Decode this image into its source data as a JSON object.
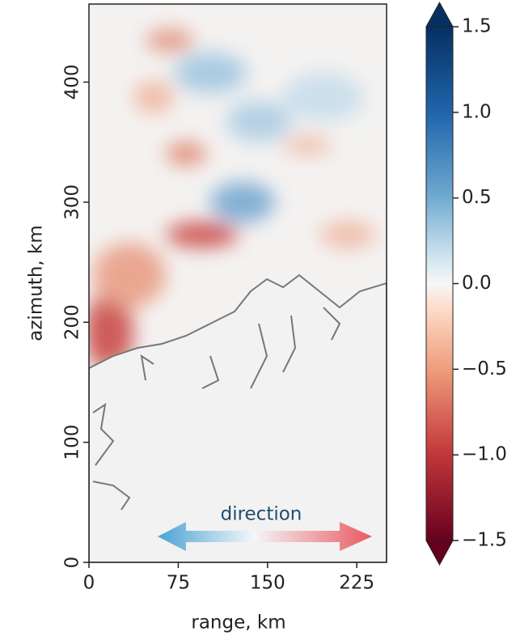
{
  "chart_data": {
    "type": "heatmap",
    "x_label": "range, km",
    "y_label": "azimuth, km",
    "xlim": [
      0,
      250
    ],
    "xticks": [
      0,
      75,
      150,
      225
    ],
    "ylim": [
      0,
      465
    ],
    "yticks": [
      0,
      100,
      200,
      300,
      400
    ],
    "colorbar": {
      "lim": [
        -1.5,
        1.5
      ],
      "colormap": "RdBu",
      "ticks": [
        {
          "value": 1.5,
          "label": "1.5"
        },
        {
          "value": 1,
          "label": "1.0"
        },
        {
          "value": 0.5,
          "label": "0.5"
        },
        {
          "value": 0,
          "label": "0.0"
        },
        {
          "value": -0.5,
          "label": "−0.5"
        },
        {
          "value": -1,
          "label": "−1.0"
        },
        {
          "value": -1.5,
          "label": "−1.5"
        }
      ]
    },
    "annotation": "direction"
  }
}
